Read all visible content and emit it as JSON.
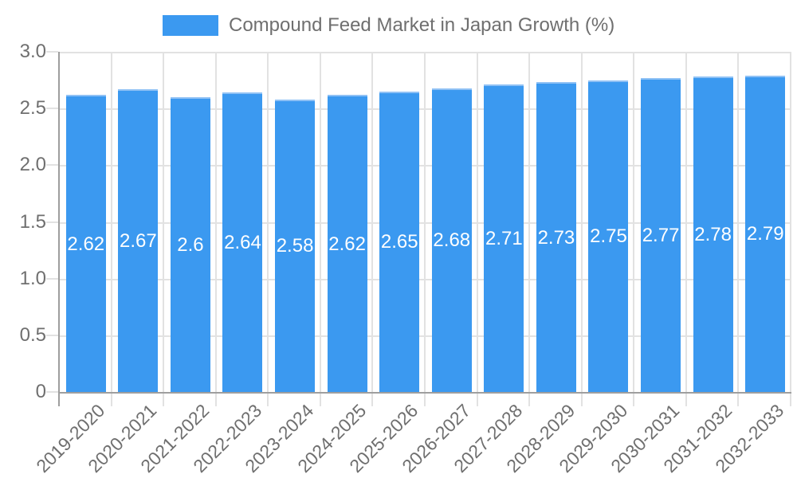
{
  "chart_data": {
    "type": "bar",
    "title": "Compound Feed Market in Japan Growth (%)",
    "legend_position": "top",
    "categories": [
      "2019-2020",
      "2020-2021",
      "2021-2022",
      "2022-2023",
      "2023-2024",
      "2024-2025",
      "2025-2026",
      "2026-2027",
      "2027-2028",
      "2028-2029",
      "2029-2030",
      "2030-2031",
      "2031-2032",
      "2032-2033"
    ],
    "values": [
      2.62,
      2.67,
      2.6,
      2.64,
      2.58,
      2.62,
      2.65,
      2.68,
      2.71,
      2.73,
      2.75,
      2.77,
      2.78,
      2.79
    ],
    "xlabel": "",
    "ylabel": "",
    "ylim": [
      0,
      3
    ],
    "yticks": [
      0,
      0.5,
      1.0,
      1.5,
      2.0,
      2.5,
      3.0
    ],
    "ytick_labels": [
      "0",
      "0.5",
      "1.0",
      "1.5",
      "2.0",
      "2.5",
      "3.0"
    ],
    "grid": true,
    "colors": {
      "bar": "#3b99f0",
      "bar_edge": "#8fc1f5",
      "value_label": "#ffffff",
      "axis_text": "#6f6f6f",
      "gridline": "#e2e2e2",
      "axis_line": "#9e9e9e",
      "background": "#ffffff"
    }
  }
}
